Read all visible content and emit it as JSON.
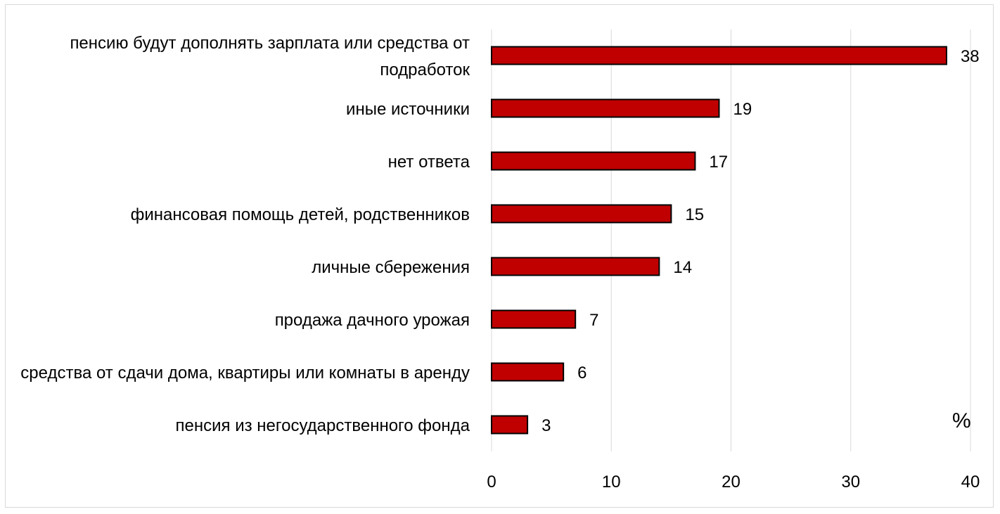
{
  "chart_data": {
    "type": "bar",
    "orientation": "horizontal",
    "categories": [
      "пенсию будут дополнять зарплата или средства от подработок",
      "иные источники",
      "нет ответа",
      "финансовая помощь детей, родственников",
      "личные сбережения",
      "продажа дачного урожая",
      "средства от сдачи дома, квартиры или комнаты в аренду",
      "пенсия из негосударственного фонда"
    ],
    "values": [
      38,
      19,
      17,
      15,
      14,
      7,
      6,
      3
    ],
    "xlim": [
      0,
      40
    ],
    "xticks": [
      "0",
      "10",
      "20",
      "30",
      "40"
    ],
    "unit_label": "%",
    "grid": "vertical",
    "legend": "none",
    "bar_color": "#c00000",
    "bar_border_color": "#000000",
    "grid_color": "#d9d9d9"
  }
}
